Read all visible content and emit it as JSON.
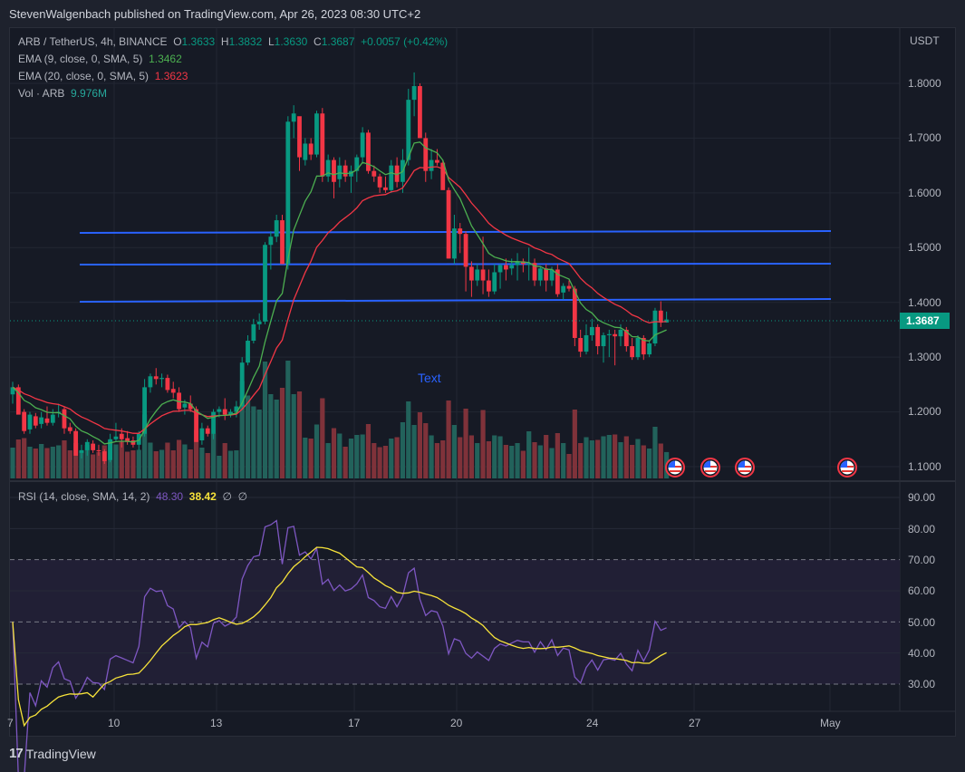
{
  "header": {
    "published": "StevenWalgenbach published on TradingView.com, Apr 26, 2023 08:30 UTC+2"
  },
  "legend": {
    "symbol": "ARB / TetherUS, 4h, BINANCE",
    "o_label": "O",
    "o": "1.3633",
    "h_label": "H",
    "h": "1.3832",
    "l_label": "L",
    "l": "1.3630",
    "c_label": "C",
    "c": "1.3687",
    "change": "+0.0057 (+0.42%)",
    "ema9_label": "EMA (9, close, 0, SMA, 5)",
    "ema9_value": "1.3462",
    "ema20_label": "EMA (20, close, 0, SMA, 5)",
    "ema20_value": "1.3623",
    "vol_label": "Vol · ARB",
    "vol_value": "9.976M",
    "rsi_label": "RSI (14, close, SMA, 14, 2)",
    "rsi_value": "48.30",
    "rsi_ma_value": "38.42",
    "rsi_extra1": "∅",
    "rsi_extra2": "∅"
  },
  "price_axis": {
    "currency": "USDT",
    "ticks": [
      "1.8000",
      "1.7000",
      "1.6000",
      "1.5000",
      "1.4000",
      "1.3000",
      "1.2000",
      "1.1000"
    ],
    "current_price": "1.3687"
  },
  "rsi_axis": {
    "ticks": [
      "90.00",
      "80.00",
      "70.00",
      "60.00",
      "50.00",
      "40.00",
      "30.00"
    ]
  },
  "time_axis": {
    "ticks": [
      "7",
      "10",
      "13",
      "17",
      "20",
      "24",
      "27",
      "May"
    ]
  },
  "annotation": {
    "text": "Text"
  },
  "footer": {
    "brand": "TradingView",
    "logo": "17"
  },
  "colors": {
    "up": "#089981",
    "down": "#f23645",
    "ema9": "#4caf50",
    "ema20": "#f23645",
    "hline": "#2962ff",
    "rsi": "#7e57c2",
    "rsi_ma": "#f7e33a",
    "vol_up": "#22625b",
    "vol_down": "#7f323a"
  },
  "chart_data": [
    {
      "type": "candlestick",
      "title": "ARB / TetherUS, 4h, BINANCE",
      "xlabel": "",
      "ylabel": "USDT",
      "ylim": [
        1.08,
        1.84
      ],
      "x_ticks": [
        "7",
        "10",
        "13",
        "17",
        "20",
        "24",
        "27",
        "May"
      ],
      "last": {
        "open": 1.3633,
        "high": 1.3832,
        "low": 1.363,
        "close": 1.3687
      },
      "horizontal_lines": [
        1.528,
        1.47,
        1.404
      ],
      "series": [
        {
          "name": "EMA (9, close, 0, SMA, 5)",
          "last": 1.3462
        },
        {
          "name": "EMA (20, close, 0, SMA, 5)",
          "last": 1.3623
        },
        {
          "name": "Vol · ARB",
          "last": "9.976M"
        }
      ],
      "candles": [
        [
          1.232,
          1.255,
          1.215,
          1.245
        ],
        [
          1.245,
          1.25,
          1.2,
          1.195
        ],
        [
          1.2,
          1.205,
          1.16,
          1.165
        ],
        [
          1.168,
          1.2,
          1.16,
          1.195
        ],
        [
          1.192,
          1.198,
          1.17,
          1.175
        ],
        [
          1.178,
          1.2,
          1.17,
          1.19
        ],
        [
          1.188,
          1.21,
          1.175,
          1.18
        ],
        [
          1.18,
          1.205,
          1.175,
          1.195
        ],
        [
          1.198,
          1.215,
          1.19,
          1.2
        ],
        [
          1.205,
          1.21,
          1.16,
          1.17
        ],
        [
          1.172,
          1.18,
          1.16,
          1.165
        ],
        [
          1.165,
          1.17,
          1.12,
          1.12
        ],
        [
          1.125,
          1.14,
          1.115,
          1.13
        ],
        [
          1.13,
          1.15,
          1.12,
          1.145
        ],
        [
          1.142,
          1.148,
          1.125,
          1.13
        ],
        [
          1.13,
          1.14,
          1.12,
          1.128
        ],
        [
          1.128,
          1.132,
          1.105,
          1.11
        ],
        [
          1.112,
          1.16,
          1.108,
          1.15
        ],
        [
          1.15,
          1.18,
          1.145,
          1.155
        ],
        [
          1.16,
          1.17,
          1.135,
          1.15
        ],
        [
          1.152,
          1.165,
          1.14,
          1.145
        ],
        [
          1.148,
          1.155,
          1.135,
          1.14
        ],
        [
          1.14,
          1.165,
          1.13,
          1.16
        ],
        [
          1.16,
          1.26,
          1.155,
          1.245
        ],
        [
          1.245,
          1.27,
          1.235,
          1.265
        ],
        [
          1.265,
          1.28,
          1.25,
          1.26
        ],
        [
          1.26,
          1.27,
          1.245,
          1.262
        ],
        [
          1.262,
          1.268,
          1.235,
          1.24
        ],
        [
          1.242,
          1.255,
          1.225,
          1.235
        ],
        [
          1.235,
          1.245,
          1.2,
          1.205
        ],
        [
          1.208,
          1.222,
          1.195,
          1.215
        ],
        [
          1.215,
          1.23,
          1.2,
          1.205
        ],
        [
          1.205,
          1.21,
          1.145,
          1.145
        ],
        [
          1.148,
          1.18,
          1.14,
          1.17
        ],
        [
          1.17,
          1.175,
          1.155,
          1.16
        ],
        [
          1.16,
          1.205,
          1.15,
          1.2
        ],
        [
          1.2,
          1.21,
          1.19,
          1.205
        ],
        [
          1.205,
          1.225,
          1.185,
          1.195
        ],
        [
          1.195,
          1.205,
          1.19,
          1.2
        ],
        [
          1.2,
          1.22,
          1.19,
          1.21
        ],
        [
          1.21,
          1.3,
          1.205,
          1.29
        ],
        [
          1.29,
          1.34,
          1.285,
          1.33
        ],
        [
          1.33,
          1.37,
          1.325,
          1.36
        ],
        [
          1.36,
          1.38,
          1.35,
          1.365
        ],
        [
          1.365,
          1.51,
          1.36,
          1.505
        ],
        [
          1.505,
          1.53,
          1.46,
          1.52
        ],
        [
          1.52,
          1.56,
          1.51,
          1.55
        ],
        [
          1.55,
          1.56,
          1.47,
          1.47
        ],
        [
          1.47,
          1.74,
          1.46,
          1.73
        ],
        [
          1.73,
          1.76,
          1.7,
          1.745
        ],
        [
          1.74,
          1.72,
          1.64,
          1.665
        ],
        [
          1.66,
          1.7,
          1.65,
          1.69
        ],
        [
          1.69,
          1.7,
          1.66,
          1.67
        ],
        [
          1.67,
          1.75,
          1.665,
          1.745
        ],
        [
          1.745,
          1.755,
          1.62,
          1.63
        ],
        [
          1.63,
          1.67,
          1.62,
          1.66
        ],
        [
          1.66,
          1.665,
          1.59,
          1.62
        ],
        [
          1.625,
          1.665,
          1.61,
          1.65
        ],
        [
          1.65,
          1.66,
          1.62,
          1.63
        ],
        [
          1.63,
          1.65,
          1.6,
          1.64
        ],
        [
          1.64,
          1.67,
          1.62,
          1.665
        ],
        [
          1.665,
          1.72,
          1.655,
          1.71
        ],
        [
          1.71,
          1.715,
          1.635,
          1.64
        ],
        [
          1.64,
          1.65,
          1.62,
          1.63
        ],
        [
          1.63,
          1.635,
          1.6,
          1.61
        ],
        [
          1.61,
          1.63,
          1.6,
          1.605
        ],
        [
          1.605,
          1.66,
          1.6,
          1.65
        ],
        [
          1.65,
          1.665,
          1.61,
          1.62
        ],
        [
          1.62,
          1.68,
          1.6,
          1.66
        ],
        [
          1.66,
          1.79,
          1.65,
          1.77
        ],
        [
          1.77,
          1.82,
          1.74,
          1.795
        ],
        [
          1.795,
          1.8,
          1.7,
          1.7
        ],
        [
          1.7,
          1.71,
          1.62,
          1.64
        ],
        [
          1.64,
          1.68,
          1.625,
          1.66
        ],
        [
          1.66,
          1.68,
          1.65,
          1.655
        ],
        [
          1.655,
          1.66,
          1.61,
          1.605
        ],
        [
          1.605,
          1.61,
          1.48,
          1.48
        ],
        [
          1.48,
          1.56,
          1.47,
          1.535
        ],
        [
          1.535,
          1.545,
          1.49,
          1.525
        ],
        [
          1.525,
          1.53,
          1.42,
          1.465
        ],
        [
          1.465,
          1.475,
          1.41,
          1.44
        ],
        [
          1.44,
          1.47,
          1.43,
          1.46
        ],
        [
          1.46,
          1.52,
          1.415,
          1.44
        ],
        [
          1.44,
          1.46,
          1.41,
          1.42
        ],
        [
          1.42,
          1.47,
          1.415,
          1.455
        ],
        [
          1.455,
          1.47,
          1.425,
          1.468
        ],
        [
          1.468,
          1.48,
          1.44,
          1.46
        ],
        [
          1.462,
          1.48,
          1.45,
          1.468
        ],
        [
          1.468,
          1.49,
          1.44,
          1.475
        ],
        [
          1.475,
          1.48,
          1.455,
          1.47
        ],
        [
          1.47,
          1.5,
          1.44,
          1.47
        ],
        [
          1.472,
          1.48,
          1.43,
          1.44
        ],
        [
          1.44,
          1.465,
          1.43,
          1.462
        ],
        [
          1.462,
          1.47,
          1.42,
          1.44
        ],
        [
          1.44,
          1.465,
          1.43,
          1.46
        ],
        [
          1.46,
          1.47,
          1.41,
          1.415
        ],
        [
          1.418,
          1.435,
          1.405,
          1.43
        ],
        [
          1.43,
          1.44,
          1.42,
          1.425
        ],
        [
          1.425,
          1.43,
          1.32,
          1.335
        ],
        [
          1.335,
          1.35,
          1.3,
          1.31
        ],
        [
          1.31,
          1.36,
          1.305,
          1.34
        ],
        [
          1.34,
          1.37,
          1.33,
          1.355
        ],
        [
          1.355,
          1.36,
          1.305,
          1.32
        ],
        [
          1.32,
          1.345,
          1.29,
          1.34
        ],
        [
          1.34,
          1.35,
          1.3,
          1.342
        ],
        [
          1.342,
          1.35,
          1.285,
          1.338
        ],
        [
          1.338,
          1.36,
          1.32,
          1.35
        ],
        [
          1.35,
          1.355,
          1.31,
          1.32
        ],
        [
          1.32,
          1.335,
          1.295,
          1.3
        ],
        [
          1.3,
          1.34,
          1.295,
          1.335
        ],
        [
          1.335,
          1.34,
          1.295,
          1.305
        ],
        [
          1.305,
          1.33,
          1.3,
          1.325
        ],
        [
          1.325,
          1.39,
          1.32,
          1.385
        ],
        [
          1.385,
          1.402,
          1.355,
          1.363
        ],
        [
          1.3633,
          1.3832,
          1.363,
          1.3687
        ]
      ]
    },
    {
      "type": "line",
      "title": "RSI (14, close, SMA, 14, 2)",
      "ylim": [
        25,
        93
      ],
      "bands": {
        "upper": 70,
        "middle": 50,
        "lower": 30
      },
      "series": [
        {
          "name": "RSI",
          "last": 48.3
        },
        {
          "name": "RSI-based MA",
          "last": 38.42
        }
      ]
    }
  ]
}
